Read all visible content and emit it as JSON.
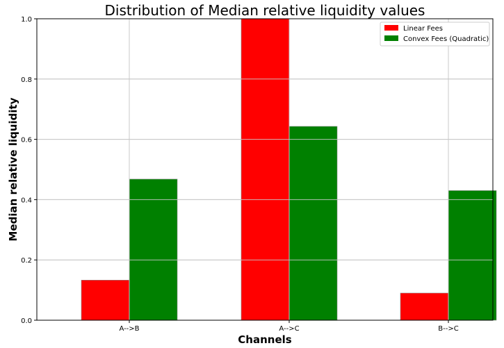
{
  "chart_data": {
    "type": "bar",
    "title": "Distribution of Median relative liquidity values",
    "xlabel": "Channels",
    "ylabel": "Median relative liquidity",
    "categories": [
      "A-->B",
      "A-->C",
      "B-->C"
    ],
    "series": [
      {
        "name": "Linear Fees",
        "color": "#ff0000",
        "values": [
          0.133,
          1.0,
          0.09
        ]
      },
      {
        "name": "Convex Fees (Quadratic)",
        "color": "#008000",
        "values": [
          0.468,
          0.643,
          0.43
        ]
      }
    ],
    "ylim": [
      0,
      1.0
    ],
    "yticks": [
      "0.0",
      "0.2",
      "0.4",
      "0.6",
      "0.8",
      "1.0"
    ],
    "grid": true,
    "legend_position": "top-right"
  }
}
